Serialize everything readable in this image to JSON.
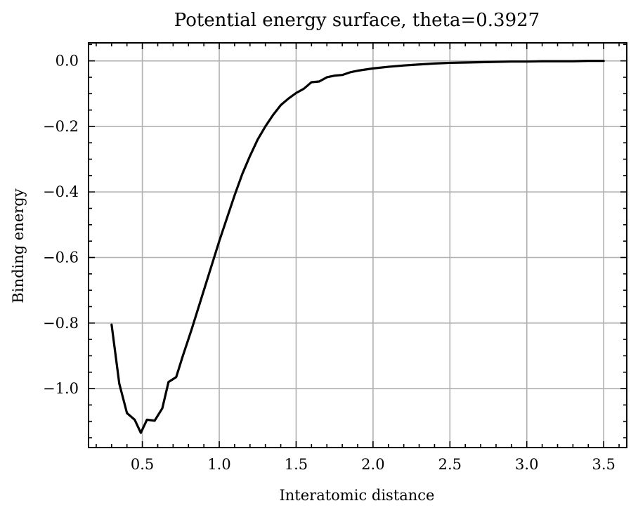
{
  "chart_data": {
    "type": "line",
    "title": "Potential energy surface, theta=0.3927",
    "xlabel": "Interatomic distance",
    "ylabel": "Binding energy",
    "xlim": [
      0.15,
      3.65
    ],
    "ylim": [
      -1.18,
      0.055
    ],
    "grid": true,
    "xticks": [
      {
        "value": 0.5,
        "label": "0.5"
      },
      {
        "value": 1.0,
        "label": "1.0"
      },
      {
        "value": 1.5,
        "label": "1.5"
      },
      {
        "value": 2.0,
        "label": "2.0"
      },
      {
        "value": 2.5,
        "label": "2.5"
      },
      {
        "value": 3.0,
        "label": "3.0"
      },
      {
        "value": 3.5,
        "label": "3.5"
      }
    ],
    "yticks": [
      {
        "value": 0.0,
        "label": "0.0"
      },
      {
        "value": -0.2,
        "label": "−0.2"
      },
      {
        "value": -0.4,
        "label": "−0.4"
      },
      {
        "value": -0.6,
        "label": "−0.6"
      },
      {
        "value": -0.8,
        "label": "−0.8"
      },
      {
        "value": -1.0,
        "label": "−1.0"
      }
    ],
    "x_minor_step": 0.1,
    "y_minor_step": 0.05,
    "series": [
      {
        "color": "#000000",
        "x": [
          0.3,
          0.35,
          0.4,
          0.45,
          0.49,
          0.53,
          0.58,
          0.63,
          0.67,
          0.72,
          0.76,
          0.82,
          0.88,
          0.94,
          1.0,
          1.05,
          1.1,
          1.15,
          1.2,
          1.25,
          1.3,
          1.35,
          1.4,
          1.45,
          1.5,
          1.55,
          1.6,
          1.65,
          1.7,
          1.75,
          1.8,
          1.85,
          1.9,
          2.0,
          2.1,
          2.2,
          2.3,
          2.4,
          2.5,
          2.6,
          2.7,
          2.8,
          2.9,
          3.0,
          3.1,
          3.2,
          3.3,
          3.4,
          3.5
        ],
        "y": [
          -0.805,
          -0.985,
          -1.075,
          -1.095,
          -1.135,
          -1.095,
          -1.098,
          -1.06,
          -0.98,
          -0.965,
          -0.905,
          -0.82,
          -0.73,
          -0.64,
          -0.55,
          -0.48,
          -0.41,
          -0.345,
          -0.29,
          -0.24,
          -0.2,
          -0.165,
          -0.135,
          -0.115,
          -0.098,
          -0.085,
          -0.065,
          -0.063,
          -0.05,
          -0.045,
          -0.043,
          -0.035,
          -0.03,
          -0.023,
          -0.018,
          -0.014,
          -0.011,
          -0.008,
          -0.006,
          -0.005,
          -0.004,
          -0.003,
          -0.002,
          -0.002,
          -0.001,
          -0.001,
          -0.001,
          0.0,
          0.0
        ]
      }
    ]
  }
}
